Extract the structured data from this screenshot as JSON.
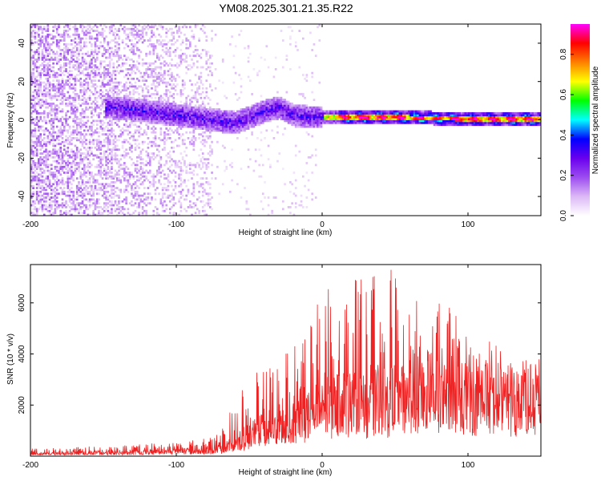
{
  "title": "YM08.2025.301.21.35.R22",
  "chart_data": [
    {
      "type": "heatmap",
      "xlabel": "Height of straight line (km)",
      "ylabel": "Frequency (Hz)",
      "xlim": [
        -200,
        150
      ],
      "ylim": [
        -50,
        50
      ],
      "x_ticks": [
        -200,
        -100,
        0,
        100
      ],
      "y_ticks": [
        -40,
        -20,
        0,
        20,
        40
      ],
      "colorbar": {
        "label": "Normalized spectral amplitude",
        "range": [
          0.0,
          0.95
        ],
        "ticks": [
          "0.0",
          "0.2",
          "0.4",
          "0.6",
          "0.8"
        ],
        "colors": [
          "#ffffff",
          "#dcb8f6",
          "#9c4cf0",
          "#6a00ee",
          "#0000ff",
          "#00ffff",
          "#00ff00",
          "#ffff00",
          "#ff8000",
          "#ff0000",
          "#ff00ff"
        ]
      },
      "features": {
        "noise_region_x": [
          -200,
          -75
        ],
        "signal_band_start_x": -150,
        "signal_center_hz": [
          [
            -145,
            6
          ],
          [
            -120,
            4
          ],
          [
            -100,
            2
          ],
          [
            -80,
            0
          ],
          [
            -60,
            -2
          ],
          [
            -40,
            4
          ],
          [
            -30,
            6
          ],
          [
            -20,
            2
          ],
          [
            -10,
            1
          ],
          [
            0,
            1
          ],
          [
            20,
            1
          ],
          [
            50,
            1
          ],
          [
            100,
            0
          ],
          [
            150,
            0
          ]
        ],
        "strong_peak_x": [
          0,
          150
        ]
      }
    },
    {
      "type": "line",
      "xlabel": "Height of straight line (km)",
      "ylabel": "SNR (10 * v/v)",
      "xlim": [
        -200,
        150
      ],
      "ylim": [
        0,
        7500
      ],
      "x_ticks": [
        -200,
        -100,
        0,
        100
      ],
      "y_ticks": [
        2000,
        4000,
        6000
      ],
      "color": "#ee2222",
      "envelope": {
        "x": [
          -200,
          -150,
          -120,
          -100,
          -80,
          -70,
          -60,
          -50,
          -40,
          -30,
          -20,
          -10,
          0,
          10,
          20,
          30,
          40,
          50,
          60,
          70,
          80,
          90,
          100,
          110,
          120,
          130,
          140,
          150
        ],
        "base": [
          100,
          150,
          200,
          250,
          250,
          300,
          600,
          900,
          1100,
          1300,
          1700,
          2000,
          2300,
          2500,
          2700,
          2700,
          2800,
          2900,
          2900,
          3000,
          3000,
          3000,
          3000,
          3000,
          2900,
          2900,
          2900,
          2900
        ],
        "peak": [
          300,
          400,
          500,
          600,
          700,
          900,
          2500,
          3100,
          3500,
          3700,
          4500,
          5800,
          6500,
          6800,
          7000,
          7100,
          7200,
          7400,
          7300,
          6800,
          6300,
          5800,
          5100,
          4800,
          4500,
          4400,
          4400,
          4400
        ]
      }
    }
  ]
}
